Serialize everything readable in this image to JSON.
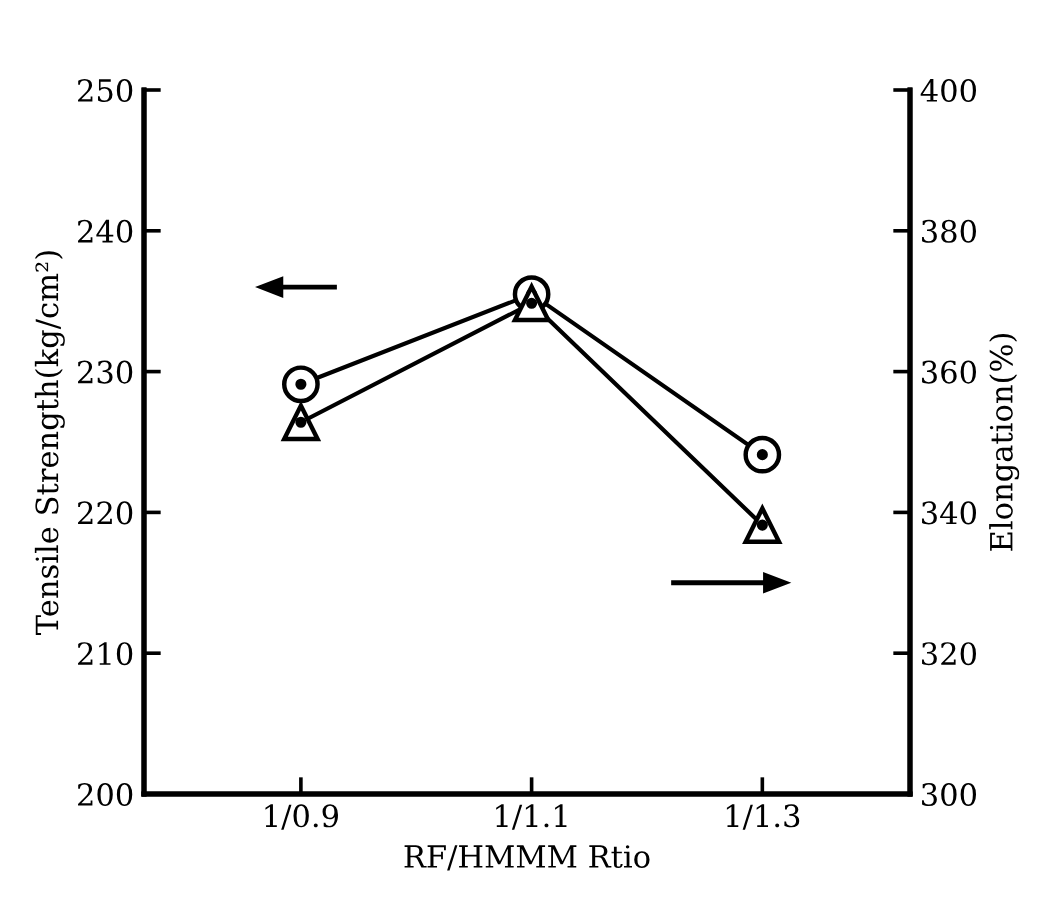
{
  "chart_data": {
    "type": "line",
    "xlabel": "RF/HMMM Rtio",
    "ylabel": "Tensile Strength(kg/cm²)",
    "y2label": "Elongation(%)",
    "categories": [
      "1/0.9",
      "1/1.1",
      "1/1.3"
    ],
    "series": [
      {
        "color": "#000000",
        "marker": "circle",
        "values": [
          229.1,
          235.5,
          224.1
        ]
      },
      {
        "color": "#000000",
        "marker": "triangle",
        "axis": "y2",
        "values": [
          352.8,
          369.7,
          338.2
        ]
      }
    ],
    "ylim": [
      200,
      250
    ],
    "yticks": [
      200,
      210,
      220,
      230,
      240,
      250
    ],
    "y2lim": [
      300,
      400
    ],
    "y2ticks": [
      300,
      320,
      340,
      360,
      380,
      400
    ],
    "grid": false,
    "legend": false,
    "line_style": "solid"
  }
}
